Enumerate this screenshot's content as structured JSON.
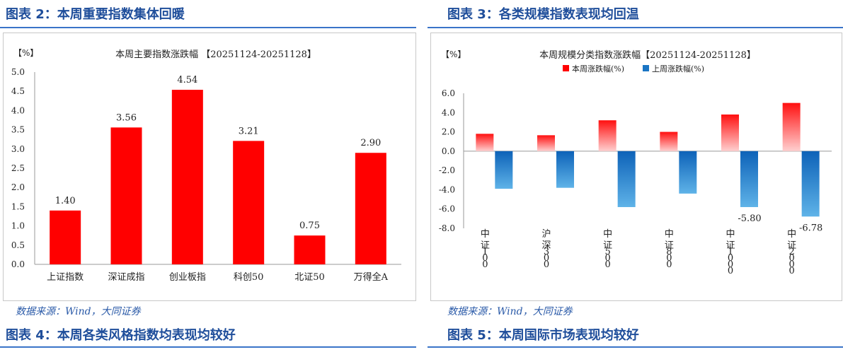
{
  "header_left": "图表 2：本周重要指数集体回暖",
  "header_right": "图表 3：各类规模指数表现均回温",
  "source_left": "数据来源：Wind，大同证券",
  "source_right": "数据来源：Wind，大同证券",
  "footer_left": "图表 4：本周各类风格指数均表现均较好",
  "footer_right": "图表 5：本周国际市场表现均较好",
  "colors": {
    "accent": "#1f4e9b",
    "red": "#ff0000",
    "blue": "#1a75c4"
  },
  "chart_data": [
    {
      "type": "bar",
      "title": "本周主要指数涨跌幅 【20251124-20251128】",
      "ylabel": "【%】",
      "categories": [
        "上证指数",
        "深证成指",
        "创业板指",
        "科创50",
        "北证50",
        "万得全A"
      ],
      "values": [
        1.4,
        3.56,
        4.54,
        3.21,
        0.75,
        2.9
      ],
      "value_labels": [
        "1.40",
        "3.56",
        "4.54",
        "3.21",
        "0.75",
        "2.90"
      ],
      "ylim": [
        0,
        5
      ],
      "yticks": [
        "0.0",
        "0.5",
        "1.0",
        "1.5",
        "2.0",
        "2.5",
        "3.0",
        "3.5",
        "4.0",
        "4.5",
        "5.0"
      ],
      "grid": false
    },
    {
      "type": "bar",
      "title": "本周规模分类指数涨跌幅【20251124-20251128】",
      "ylabel": "【%】",
      "categories": [
        "中证100",
        "沪深300",
        "中证500",
        "中证800",
        "中证1000",
        "中证2000"
      ],
      "series": [
        {
          "name": "本周涨跌幅(%)",
          "values": [
            1.8,
            1.65,
            3.2,
            2.0,
            3.8,
            5.0
          ]
        },
        {
          "name": "上周涨跌幅(%)",
          "values": [
            -3.9,
            -3.8,
            -5.8,
            -4.4,
            -5.8,
            -6.78
          ]
        }
      ],
      "value_labels": [
        {
          "index": 4,
          "series": 1,
          "text": "-5.80"
        },
        {
          "index": 5,
          "series": 1,
          "text": "-6.78"
        }
      ],
      "ylim": [
        -8,
        6
      ],
      "yticks": [
        "6.0",
        "4.0",
        "2.0",
        "0.0",
        "-2.0",
        "-4.0",
        "-6.0",
        "-8.0"
      ],
      "legend": "top",
      "grid": false
    }
  ]
}
